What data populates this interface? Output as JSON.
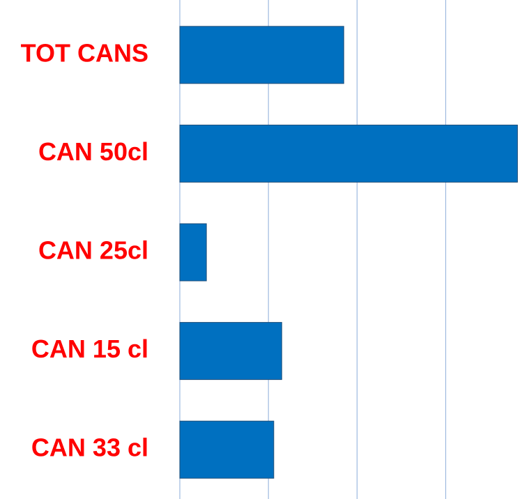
{
  "chart_data": {
    "type": "bar",
    "orientation": "horizontal",
    "categories": [
      "TOT CANS",
      "CAN 50cl",
      "CAN 25cl",
      "CAN 15 cl",
      "CAN 33 cl"
    ],
    "values": [
      1.85,
      3.81,
      0.3,
      1.15,
      1.06
    ],
    "color": "#0070c0",
    "label_color": "#ff0000",
    "xlim": [
      0,
      3.94
    ],
    "xticks": [
      0,
      1,
      2,
      3
    ],
    "grid": true
  }
}
